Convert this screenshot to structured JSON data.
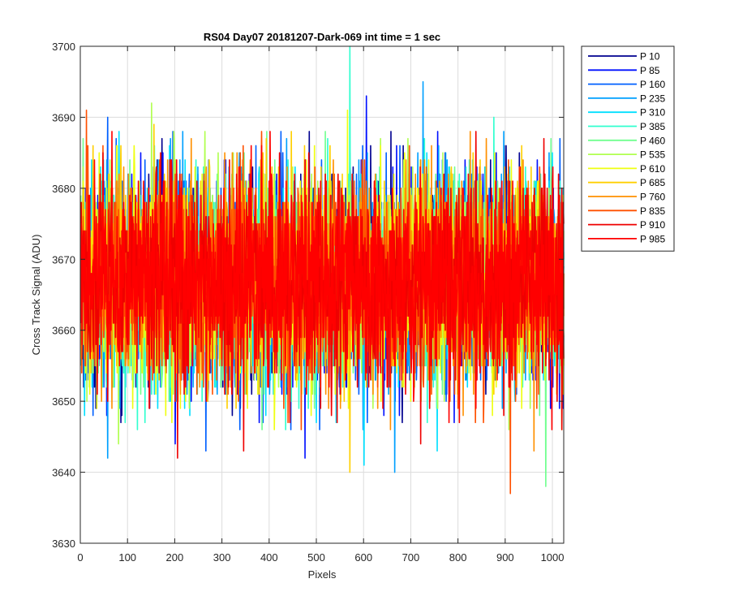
{
  "chart_data": {
    "type": "line",
    "title": "RS04 Day07 20181207-Dark-069 int time = 1 sec",
    "xlabel": "Pixels",
    "ylabel": "Cross Track Signal (ADU)",
    "xlim": [
      0,
      1024
    ],
    "ylim": [
      3630,
      3700
    ],
    "x_ticks": [
      0,
      100,
      200,
      300,
      400,
      500,
      600,
      700,
      800,
      900,
      1000
    ],
    "y_ticks": [
      3630,
      3640,
      3650,
      3660,
      3670,
      3680,
      3690,
      3700
    ],
    "grid": true,
    "legend_position": "outside-top-right",
    "noise_mean": 3667,
    "x_count": 1024,
    "series": [
      {
        "name": "P 10",
        "color": "#00008f",
        "spread": 7,
        "spikes": [
          [
            570,
            3685
          ]
        ]
      },
      {
        "name": "P 85",
        "color": "#0010ff",
        "spread": 7,
        "spikes": [
          [
            605,
            3693
          ],
          [
            475,
            3642
          ],
          [
            200,
            3644
          ]
        ]
      },
      {
        "name": "P 160",
        "color": "#0060ff",
        "spread": 7,
        "spikes": [
          [
            57,
            3690
          ],
          [
            265,
            3643
          ]
        ]
      },
      {
        "name": "P 235",
        "color": "#00a0ff",
        "spread": 7,
        "spikes": [
          [
            725,
            3695
          ],
          [
            665,
            3640
          ],
          [
            57,
            3642
          ]
        ]
      },
      {
        "name": "P 310",
        "color": "#00dfff",
        "spread": 7,
        "spikes": [
          [
            755,
            3643
          ],
          [
            600,
            3641
          ]
        ]
      },
      {
        "name": "P 385",
        "color": "#30ffcf",
        "spread": 7,
        "spikes": [
          [
            570,
            3700
          ],
          [
            875,
            3690
          ]
        ]
      },
      {
        "name": "P 460",
        "color": "#70ff8f",
        "spread": 7,
        "spikes": [
          [
            985,
            3638
          ]
        ]
      },
      {
        "name": "P 535",
        "color": "#b0ff4f",
        "spread": 7,
        "spikes": [
          [
            150,
            3692
          ],
          [
            80,
            3644
          ]
        ]
      },
      {
        "name": "P 610",
        "color": "#efff10",
        "spread": 7,
        "spikes": [
          [
            565,
            3691
          ],
          [
            180,
            3648
          ]
        ]
      },
      {
        "name": "P 685",
        "color": "#ffcf00",
        "spread": 7,
        "spikes": [
          [
            570,
            3640
          ],
          [
            155,
            3689
          ]
        ]
      },
      {
        "name": "P 760",
        "color": "#ff9000",
        "spread": 7,
        "spikes": [
          [
            960,
            3643
          ],
          [
            825,
            3688
          ]
        ]
      },
      {
        "name": "P 835",
        "color": "#ff5000",
        "spread": 7,
        "spikes": [
          [
            910,
            3637
          ],
          [
            12,
            3691
          ]
        ]
      },
      {
        "name": "P 910",
        "color": "#ef0000",
        "spread": 7,
        "spikes": [
          [
            205,
            3642
          ],
          [
            345,
            3643
          ],
          [
            720,
            3644
          ]
        ]
      },
      {
        "name": "P 985",
        "color": "#ff0000",
        "spread": 7,
        "spikes": []
      }
    ]
  }
}
